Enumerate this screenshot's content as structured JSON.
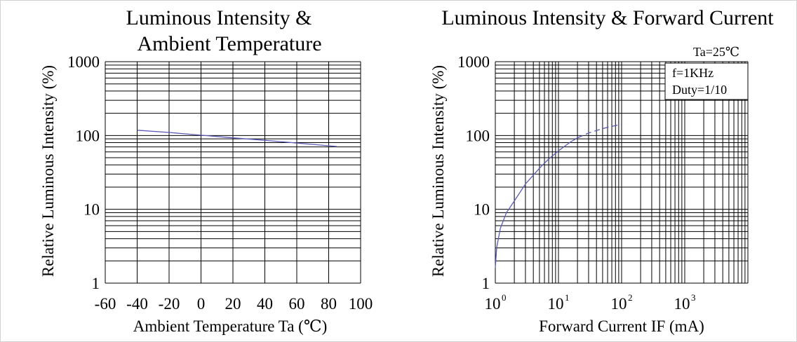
{
  "chart_data": [
    {
      "type": "line",
      "title": [
        "Luminous Intensity &",
        "Ambient Temperature"
      ],
      "xlabel": "Ambient Temperature Ta (℃)",
      "ylabel": "Relative Luminous Intensity (%)",
      "xlim": [
        -60,
        100
      ],
      "xticks": [
        -60,
        -40,
        -20,
        0,
        20,
        40,
        60,
        80,
        100
      ],
      "ylim": [
        1,
        1000
      ],
      "yscale": "log",
      "yticks": [
        1,
        10,
        100,
        1000
      ],
      "grid": true,
      "series": [
        {
          "x": [
            -40,
            -20,
            0,
            20,
            40,
            60,
            85
          ],
          "y": [
            118,
            110,
            101,
            93,
            86,
            79,
            71
          ]
        }
      ]
    },
    {
      "type": "line",
      "title": [
        "Luminous Intensity & Forward Current"
      ],
      "xlabel": "Forward Current IF (mA)",
      "ylabel": "Relative Luminous Intensity (%)",
      "xlim": [
        1,
        10000
      ],
      "xscale": "log",
      "xticks": [
        {
          "base": "10",
          "exp": "0"
        },
        {
          "base": "10",
          "exp": "1"
        },
        {
          "base": "10",
          "exp": "2"
        },
        {
          "base": "10",
          "exp": "3"
        }
      ],
      "ylim": [
        1,
        1000
      ],
      "yscale": "log",
      "yticks": [
        1,
        10,
        100,
        1000
      ],
      "grid": true,
      "annotations": [
        "Ta=25℃",
        "f=1KHz",
        "Duty=1/10"
      ],
      "series": [
        {
          "style": "solid",
          "x": [
            1,
            1.05,
            1.2,
            1.5,
            2,
            3,
            5,
            7,
            10,
            15,
            20
          ],
          "y": [
            1.6,
            3,
            5.5,
            9,
            13,
            22,
            36,
            48,
            62,
            80,
            93
          ]
        },
        {
          "style": "dashed",
          "x": [
            20,
            30,
            50,
            70,
            100
          ],
          "y": [
            93,
            108,
            124,
            133,
            142
          ]
        }
      ]
    }
  ]
}
